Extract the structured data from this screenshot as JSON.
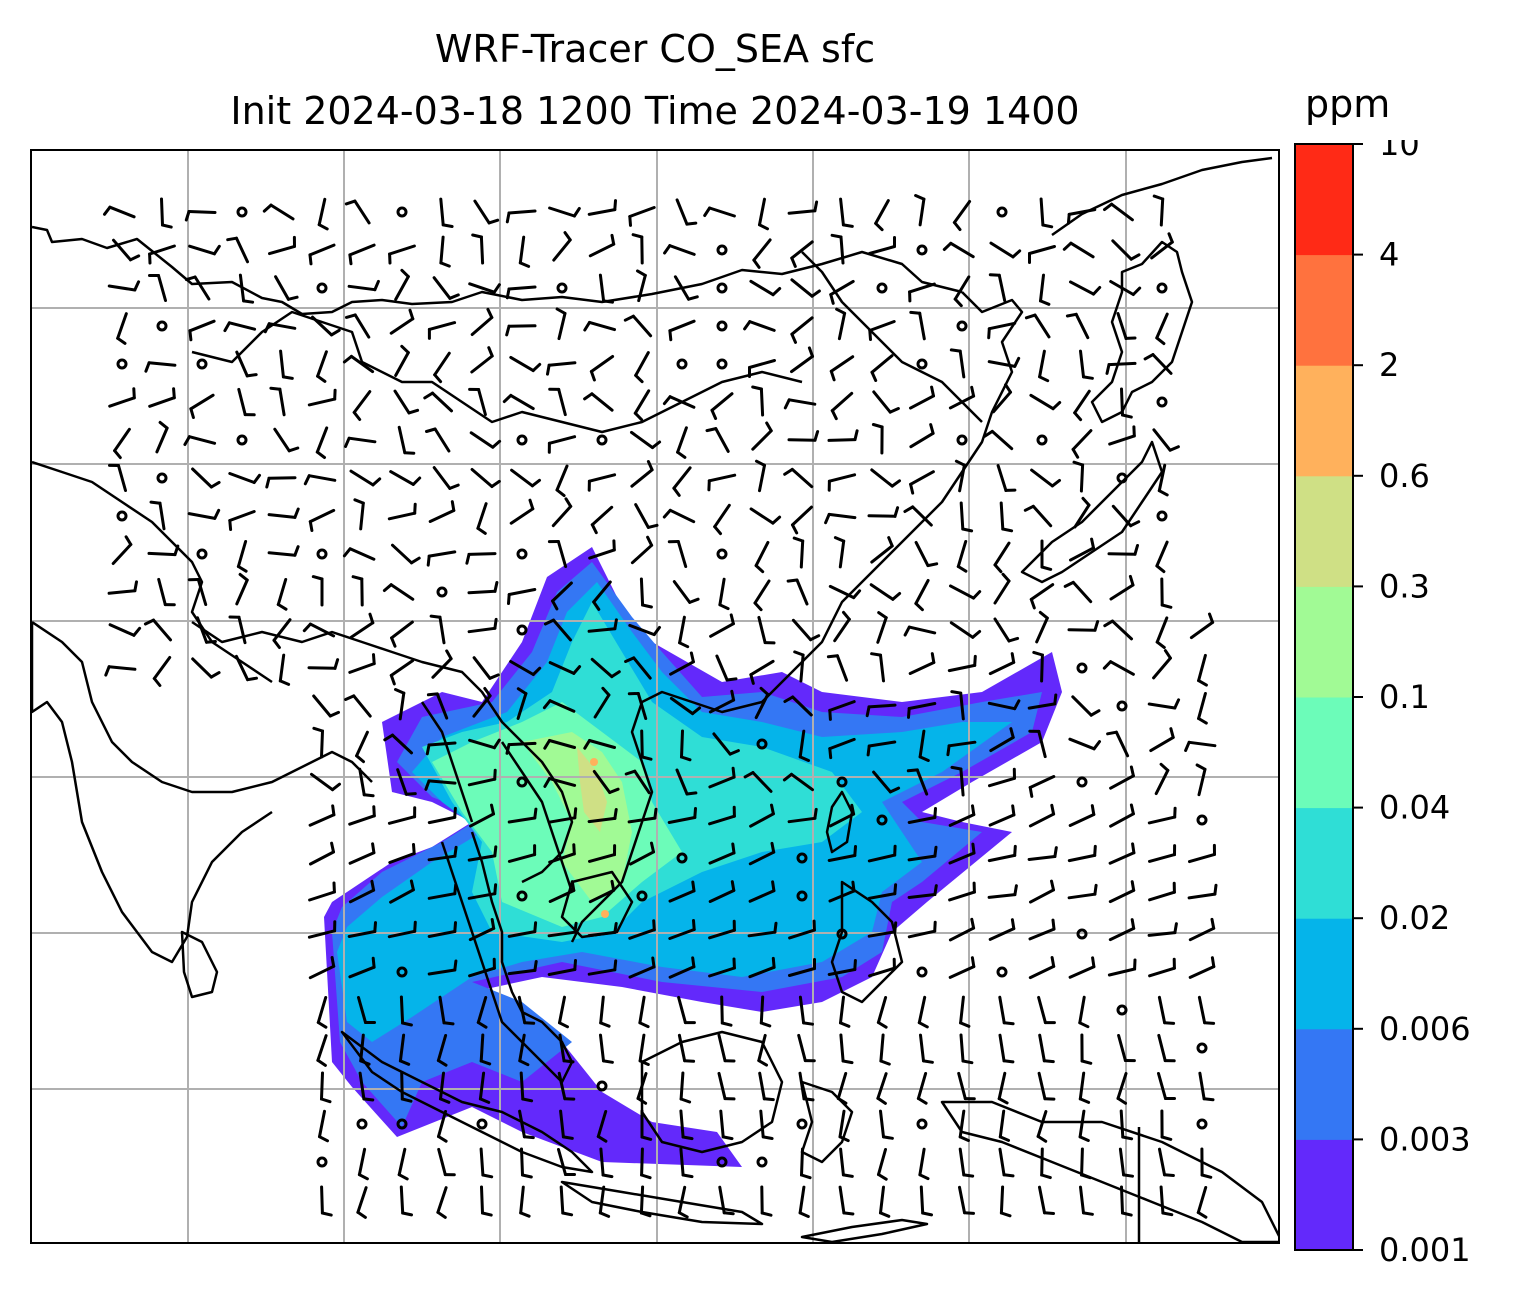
{
  "title": {
    "line1": "WRF-Tracer CO_SEA sfc",
    "line2": "Init 2024-03-18 1200 Time 2024-03-19 1400"
  },
  "colorbar": {
    "unit": "ppm",
    "levels": [
      "0.001",
      "0.003",
      "0.006",
      "0.02",
      "0.04",
      "0.1",
      "0.3",
      "0.6",
      "2",
      "4",
      "10"
    ],
    "colors": [
      "#6329fb",
      "#3477f4",
      "#05b4ea",
      "#2fded6",
      "#6cfcb9",
      "#a1fa95",
      "#cfe085",
      "#ffb15c",
      "#ff723e",
      "#ff2a16"
    ]
  },
  "chart_data": {
    "type": "heatmap",
    "variable": "CO_SEA",
    "unit": "ppm",
    "level_boundaries": [
      0.001,
      0.003,
      0.006,
      0.02,
      0.04,
      0.1,
      0.3,
      0.6,
      2,
      4,
      10
    ],
    "grid": true
  }
}
